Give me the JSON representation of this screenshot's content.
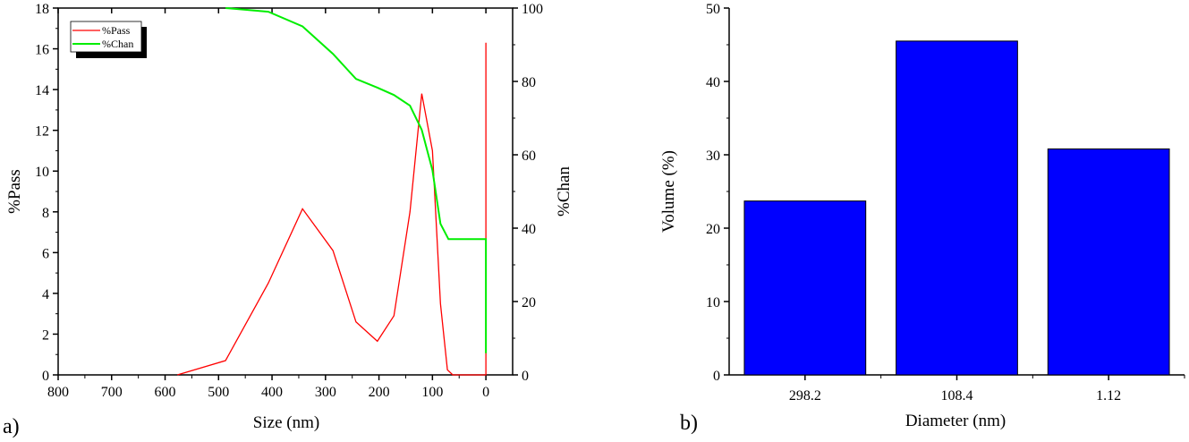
{
  "chart_data": [
    {
      "type": "line",
      "panel_label": "a)",
      "xlabel": "Size (nm)",
      "ylabel": "%Pass",
      "y2label": "%Chan",
      "xlim": [
        800,
        -50
      ],
      "ylim": [
        0,
        18
      ],
      "y2lim": [
        0,
        100
      ],
      "x_ticks": [
        "800",
        "700",
        "600",
        "500",
        "400",
        "300",
        "200",
        "100",
        "0"
      ],
      "y_ticks": [
        "0",
        "2",
        "4",
        "6",
        "8",
        "10",
        "12",
        "14",
        "16",
        "18"
      ],
      "y2_ticks": [
        "0",
        "20",
        "40",
        "60",
        "80",
        "100"
      ],
      "legend": {
        "placement": "top-left",
        "entries": [
          "%Pass",
          "%Chan"
        ]
      },
      "grid": false,
      "series": [
        {
          "name": "%Pass",
          "axis": "left",
          "color": "#ff0000",
          "x": [
            577,
            487,
            407,
            343,
            286,
            243,
            203,
            172,
            142,
            120,
            100,
            85,
            72,
            62,
            0,
            0
          ],
          "y": [
            0,
            0.7,
            4.5,
            8.15,
            6.1,
            2.6,
            1.65,
            2.9,
            8.0,
            13.8,
            11.0,
            3.5,
            0.25,
            0,
            0,
            16.3
          ]
        },
        {
          "name": "%Chan",
          "axis": "right",
          "color": "#00ee00",
          "x": [
            487,
            407,
            343,
            286,
            243,
            203,
            172,
            142,
            120,
            100,
            85,
            70,
            0,
            0
          ],
          "y": [
            100,
            99,
            95,
            87.5,
            80.7,
            78.3,
            76.3,
            73.4,
            66.8,
            55.8,
            41.2,
            37,
            37,
            5.9
          ]
        }
      ]
    },
    {
      "type": "bar",
      "panel_label": "b)",
      "xlabel": "Diameter (nm)",
      "ylabel": "Volume (%)",
      "categories": [
        "298.2",
        "108.4",
        "1.12"
      ],
      "values": [
        23.7,
        45.5,
        30.8
      ],
      "ylim": [
        0,
        50
      ],
      "y_ticks": [
        "0",
        "10",
        "20",
        "30",
        "40",
        "50"
      ],
      "bar_color": "#0000ff",
      "grid": false
    }
  ]
}
